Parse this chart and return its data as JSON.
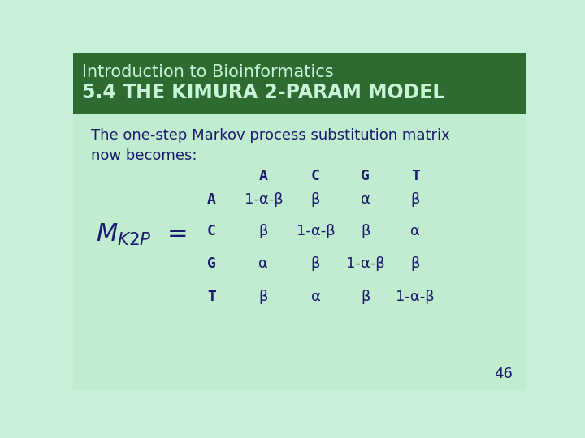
{
  "title_line1": "Introduction to Bioinformatics",
  "title_line2": "5.4 THE KIMURA 2-PARAM MODEL",
  "bg_color": "#c8f0d8",
  "title_color": "#c8f5d8",
  "body_text_color": "#1a1a6e",
  "subtitle_line1": "The one-step Markov process substitution matrix",
  "subtitle_line2": "now becomes:",
  "col_headers": [
    "A",
    "C",
    "G",
    "T"
  ],
  "row_headers": [
    "A",
    "C",
    "G",
    "T"
  ],
  "matrix": [
    [
      "1-α-β",
      "β",
      "α",
      "β"
    ],
    [
      "β",
      "1-α-β",
      "β",
      "α"
    ],
    [
      "α",
      "β",
      "1-α-β",
      "β"
    ],
    [
      "β",
      "α",
      "β",
      "1-α-β"
    ]
  ],
  "slide_number": "46",
  "header_green": "#2e6b30",
  "stripe_color": "#b8e8c8"
}
